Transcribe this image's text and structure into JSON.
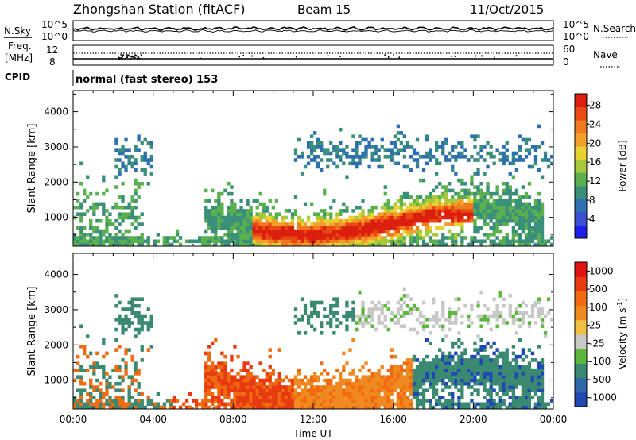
{
  "header": {
    "station": "Zhongshan Station (fitACF)",
    "beam": "Beam 15",
    "date": "11/Oct/2015"
  },
  "status_panels": {
    "nsky": {
      "label": "N.Sky",
      "ticks_left": [
        "10^5",
        "10^0"
      ],
      "ticks_right": [
        "10^5",
        "10^0"
      ],
      "right_label": "N.Search"
    },
    "freq": {
      "label_line1": "Freq.",
      "label_line2": "[MHz]",
      "ticks_left": [
        "12",
        "8"
      ],
      "ticks_right": [
        "60",
        "0"
      ],
      "right_label": "Nave"
    },
    "cpid": {
      "label": "CPID",
      "text": "normal (fast stereo) 153"
    }
  },
  "chart_data": [
    {
      "type": "heatmap",
      "name": "power-panel",
      "xlabel": "",
      "ylabel": "Slant Range [km]",
      "x_range_hours": [
        0,
        24
      ],
      "ylim": [
        180,
        4600
      ],
      "y_ticks": [
        1000,
        2000,
        3000,
        4000
      ],
      "colorbar": {
        "label": "Power [dB]",
        "ticks": [
          "4",
          "8",
          "12",
          "16",
          "20",
          "24",
          "28"
        ],
        "colors": [
          "#1e1ee6",
          "#3b4fd2",
          "#2e6fb0",
          "#3a8f7a",
          "#5ab04e",
          "#a8c83c",
          "#e8d232",
          "#f2a02a",
          "#f07a1e",
          "#e84a14",
          "#dc1e0e"
        ]
      },
      "grid": false
    },
    {
      "type": "heatmap",
      "name": "velocity-panel",
      "xlabel": "Time UT",
      "ylabel": "Slant Range [km]",
      "x_range_hours": [
        0,
        24
      ],
      "x_ticks": [
        "00:00",
        "04:00",
        "08:00",
        "12:00",
        "16:00",
        "20:00",
        "00:00"
      ],
      "ylim": [
        180,
        4600
      ],
      "y_ticks": [
        1000,
        2000,
        3000,
        4000
      ],
      "colorbar": {
        "label": "Velocity [m s",
        "label_sup": "-1",
        "label_end": "]",
        "ticks": [
          "1000",
          "500",
          "100",
          "25",
          "-25",
          "-100",
          "-500",
          "-1000"
        ],
        "colors": [
          "#2048b4",
          "#2f68a8",
          "#3a8a72",
          "#5cb83c",
          "#c8c8c8",
          "#f0c040",
          "#f08a20",
          "#f06a10",
          "#e83a10",
          "#e01410"
        ]
      },
      "grid": false
    }
  ],
  "colors": {
    "background": "#ffffff",
    "axis": "#000000"
  }
}
